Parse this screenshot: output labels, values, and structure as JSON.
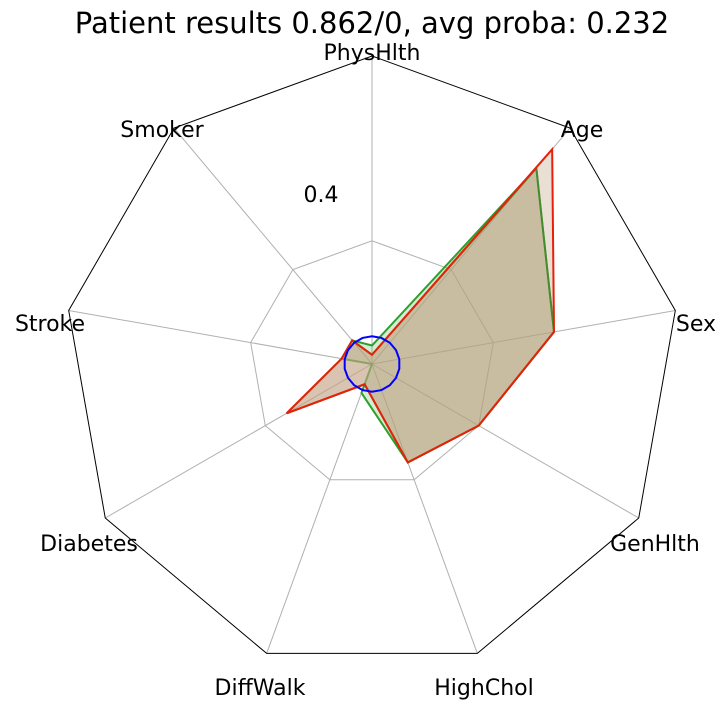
{
  "chart_data": {
    "type": "radar",
    "title": "Patient results 0.862/0, avg proba: 0.232",
    "axes": [
      "PhysHlth",
      "Age",
      "Sex",
      "GenHlth",
      "HighChol",
      "DiffWalk",
      "Diabetes",
      "Stroke",
      "Smoker"
    ],
    "rmax": 1.0,
    "ring_values": [
      0.4
    ],
    "ring_label": "0.4",
    "grid": true,
    "series": [
      {
        "color": "#2ca02c",
        "line": "#2ca02c",
        "fill": "#2ca02c",
        "fill_opacity": 0.2,
        "values": [
          0.06,
          0.83,
          0.6,
          0.4,
          0.34,
          0.1,
          0.0,
          0.1,
          0.1
        ]
      },
      {
        "color": "#008000",
        "line": "#008000",
        "fill": "#c4a484",
        "fill_opacity": 0.45,
        "values": [
          0.03,
          0.83,
          0.6,
          0.4,
          0.34,
          0.07,
          0.32,
          0.1,
          0.1
        ]
      },
      {
        "color": "#e8200a",
        "line": "#e8200a",
        "fill": "#c4a484",
        "fill_opacity": 0.35,
        "values": [
          0.03,
          0.91,
          0.6,
          0.4,
          0.34,
          0.07,
          0.32,
          0.1,
          0.1
        ]
      },
      {
        "color": "#0000ff",
        "line": "#0000ff",
        "fill": "none",
        "fill_opacity": 0,
        "values": [
          0.09,
          0.09,
          0.09,
          0.09,
          0.09,
          0.09,
          0.09,
          0.09,
          0.09,
          0.09,
          0.09,
          0.09,
          0.09,
          0.09,
          0.09,
          0.09,
          0.09,
          0.09
        ]
      }
    ]
  }
}
